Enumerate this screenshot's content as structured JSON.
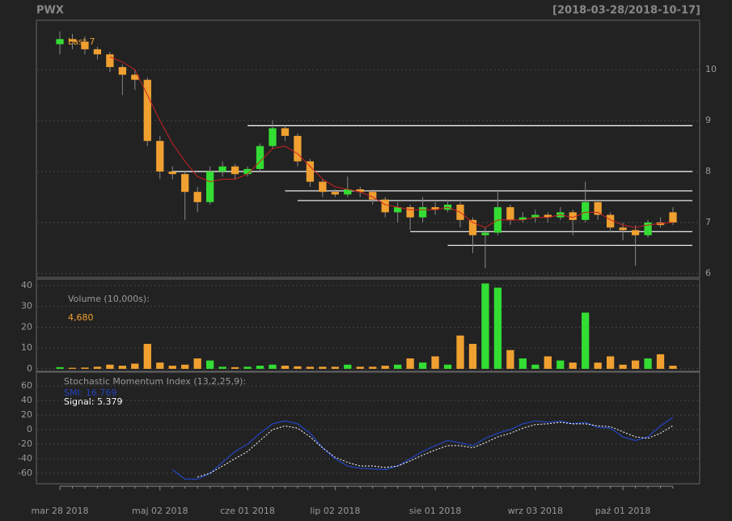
{
  "chart_data": {
    "type": "candlestick",
    "title": "PWX",
    "date_range": "[2018-03-28/2018-10-17]",
    "last_label": "Last 7",
    "categories": [
      "mar 28 2018",
      null,
      null,
      null,
      null,
      null,
      null,
      null,
      "maj 02 2018",
      null,
      null,
      null,
      null,
      null,
      null,
      "cze 01 2018",
      null,
      null,
      null,
      null,
      null,
      null,
      "lip 02 2018",
      null,
      null,
      null,
      null,
      null,
      null,
      null,
      "sie 01 2018",
      null,
      null,
      null,
      null,
      null,
      null,
      null,
      "wrz 03 2018",
      null,
      null,
      null,
      null,
      null,
      null,
      "paź 01 2018",
      null,
      null,
      null,
      null
    ],
    "open": [
      10.5,
      10.6,
      10.55,
      10.4,
      10.3,
      10.05,
      9.9,
      9.8,
      8.6,
      8.0,
      7.95,
      7.6,
      7.4,
      8.0,
      8.1,
      7.95,
      8.05,
      8.5,
      8.85,
      8.7,
      8.2,
      7.8,
      7.6,
      7.55,
      7.65,
      7.6,
      7.45,
      7.2,
      7.3,
      7.1,
      7.3,
      7.25,
      7.35,
      7.05,
      6.75,
      6.8,
      7.3,
      7.05,
      7.1,
      7.15,
      7.1,
      7.2,
      7.05,
      7.4,
      7.15,
      6.9,
      6.85,
      6.75,
      7.0,
      7.2
    ],
    "high": [
      10.75,
      10.7,
      10.65,
      10.45,
      10.35,
      10.1,
      10.0,
      9.85,
      8.7,
      8.1,
      8.0,
      7.7,
      8.1,
      8.2,
      8.15,
      8.1,
      8.55,
      9.0,
      8.9,
      8.75,
      8.25,
      7.85,
      7.65,
      7.9,
      7.7,
      7.65,
      7.5,
      7.4,
      7.35,
      7.5,
      7.4,
      7.45,
      7.4,
      7.1,
      6.9,
      7.6,
      7.35,
      7.2,
      7.25,
      7.2,
      7.3,
      7.25,
      7.8,
      7.45,
      7.2,
      7.0,
      6.95,
      7.05,
      7.1,
      7.3
    ],
    "low": [
      10.3,
      10.4,
      10.3,
      10.2,
      9.95,
      9.5,
      9.6,
      8.5,
      7.85,
      7.85,
      7.05,
      7.2,
      7.35,
      7.9,
      7.85,
      7.9,
      8.0,
      8.45,
      8.6,
      8.1,
      7.7,
      7.5,
      7.5,
      7.5,
      7.5,
      7.35,
      7.1,
      7.0,
      6.85,
      7.0,
      7.15,
      7.2,
      6.9,
      6.4,
      6.1,
      6.75,
      6.95,
      7.0,
      7.0,
      7.0,
      7.05,
      6.75,
      7.0,
      7.05,
      6.8,
      6.65,
      6.15,
      6.7,
      6.9,
      6.95
    ],
    "close": [
      10.6,
      10.55,
      10.4,
      10.3,
      10.05,
      9.9,
      9.8,
      8.6,
      8.0,
      7.95,
      7.6,
      7.4,
      8.0,
      8.1,
      7.95,
      8.05,
      8.5,
      8.85,
      8.7,
      8.2,
      7.8,
      7.6,
      7.55,
      7.65,
      7.6,
      7.45,
      7.2,
      7.3,
      7.1,
      7.3,
      7.25,
      7.35,
      7.05,
      6.75,
      6.8,
      7.3,
      7.05,
      7.1,
      7.15,
      7.1,
      7.2,
      7.05,
      7.4,
      7.15,
      6.9,
      6.85,
      6.75,
      7.0,
      6.95,
      7.0
    ],
    "sma": [
      null,
      null,
      null,
      null,
      10.25,
      10.15,
      10.0,
      9.5,
      9.0,
      8.55,
      8.2,
      7.9,
      7.8,
      7.85,
      7.85,
      7.95,
      8.2,
      8.45,
      8.5,
      8.35,
      8.1,
      7.85,
      7.7,
      7.65,
      7.6,
      7.5,
      7.35,
      7.3,
      7.25,
      7.25,
      7.25,
      7.3,
      7.2,
      7.0,
      6.9,
      7.05,
      7.05,
      7.05,
      7.1,
      7.1,
      7.15,
      7.1,
      7.2,
      7.2,
      7.05,
      6.95,
      6.9,
      6.95,
      6.98,
      7.0
    ],
    "up_color": "#33dd33",
    "down_color": "#f0a030",
    "sma_color": "#cc2222",
    "ylim": [
      5.92,
      10.97
    ],
    "yticks": [
      6,
      7,
      8,
      9,
      10
    ],
    "hlines": [
      {
        "value": 8.9,
        "start": 15
      },
      {
        "value": 8.0,
        "start": 9
      },
      {
        "value": 7.62,
        "start": 18
      },
      {
        "value": 7.43,
        "start": 19
      },
      {
        "value": 6.82,
        "start": 28
      },
      {
        "value": 6.55,
        "start": 31
      }
    ],
    "volume": {
      "label": "Volume (10,000s):",
      "last": "4,680",
      "values": [
        0.8,
        0.5,
        0.6,
        1.0,
        2.0,
        1.5,
        2.5,
        12,
        3,
        1.5,
        2,
        5,
        4,
        1,
        0.8,
        1,
        1.5,
        2,
        1.5,
        1.2,
        1,
        1,
        1,
        2,
        1,
        1,
        1.5,
        2,
        5,
        3,
        6,
        2,
        16,
        12,
        41,
        39,
        9,
        5,
        2,
        6,
        4,
        3,
        27,
        3,
        6,
        2,
        4,
        5,
        7,
        1.5
      ],
      "ylim": [
        -1.2,
        43.1
      ],
      "yticks": [
        0,
        10,
        20,
        30,
        40
      ]
    },
    "smi": {
      "label": "Stochastic Momentum Index (13,2,25,9):",
      "smi_label": "SMI: 16.769",
      "signal_label": "Signal: 5.379",
      "smi_color": "#2244bb",
      "signal_color": "#ffffff",
      "smi": [
        null,
        null,
        null,
        null,
        null,
        null,
        null,
        null,
        null,
        -55,
        -68,
        -68,
        -60,
        -45,
        -30,
        -20,
        -5,
        8,
        12,
        8,
        -5,
        -25,
        -40,
        -50,
        -53,
        -54,
        -55,
        -50,
        -40,
        -30,
        -22,
        -15,
        -18,
        -22,
        -12,
        -5,
        0,
        8,
        12,
        10,
        12,
        8,
        10,
        3,
        2,
        -10,
        -15,
        -10,
        5,
        16.8
      ],
      "signal": [
        null,
        null,
        null,
        null,
        null,
        null,
        null,
        null,
        null,
        null,
        null,
        -65,
        -60,
        -50,
        -40,
        -30,
        -15,
        0,
        5,
        2,
        -10,
        -25,
        -38,
        -45,
        -50,
        -50,
        -52,
        -50,
        -43,
        -35,
        -28,
        -22,
        -22,
        -25,
        -18,
        -10,
        -5,
        2,
        7,
        8,
        10,
        8,
        8,
        5,
        4,
        -3,
        -10,
        -12,
        -5,
        5.4
      ],
      "ylim": [
        -74.4,
        78.9
      ],
      "yticks": [
        -60,
        -40,
        -20,
        0,
        20,
        40,
        60
      ]
    }
  }
}
